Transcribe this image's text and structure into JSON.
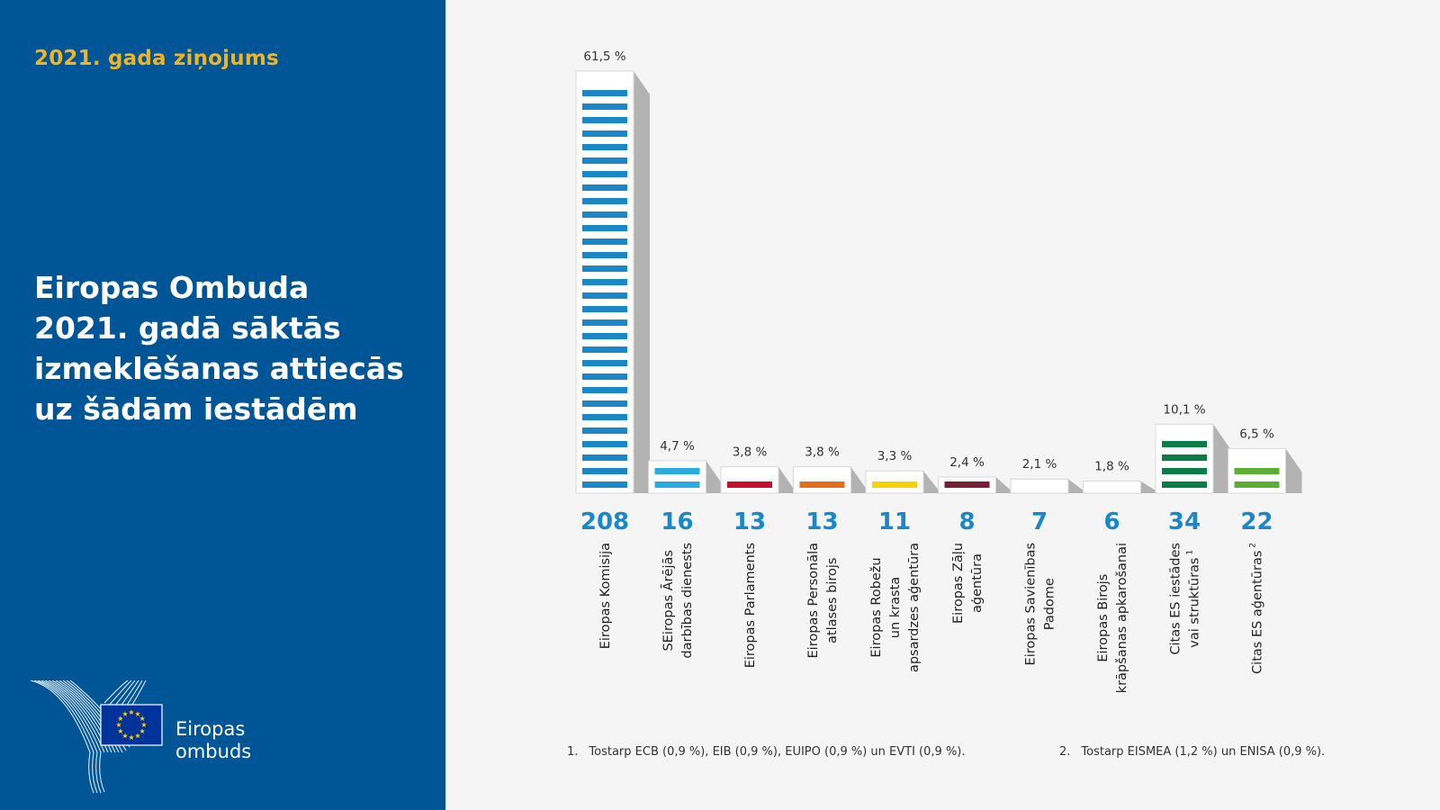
{
  "sidebar": {
    "report_label": "2021. gada ziņojums",
    "title_lines": [
      "Eiropas Ombuda",
      "2021. gadā sāktās",
      "izmeklēšanas attiecās",
      "uz šādām iestādēm"
    ],
    "logo_text": [
      "Eiropas",
      "ombuds"
    ],
    "colors": {
      "background": "#005596",
      "accent": "#f0b323",
      "eu_blue": "#003399",
      "eu_star": "#ffcc00"
    }
  },
  "chart_data": {
    "type": "bar",
    "ylim": [
      0,
      208
    ],
    "categories": [
      {
        "lines": [
          "Eiropas Komisija"
        ],
        "sup": ""
      },
      {
        "lines": [
          "SEiropas Ārējās",
          "darbības dienests"
        ],
        "sup": ""
      },
      {
        "lines": [
          "Eiropas Parlaments"
        ],
        "sup": ""
      },
      {
        "lines": [
          "Eiropas Personāla",
          "atlases birojs"
        ],
        "sup": ""
      },
      {
        "lines": [
          "Eiropas Robežu",
          "un krasta",
          "apsardzes aģentūra"
        ],
        "sup": ""
      },
      {
        "lines": [
          "Eiropas Zāļu",
          "aģentūra"
        ],
        "sup": ""
      },
      {
        "lines": [
          "Eiropas Savienības",
          "Padome"
        ],
        "sup": ""
      },
      {
        "lines": [
          "Eiropas Birojs",
          "krāpšanas apkarošanai"
        ],
        "sup": ""
      },
      {
        "lines": [
          "Citas ES iestādes",
          "vai struktūras"
        ],
        "sup": "1"
      },
      {
        "lines": [
          "Citas ES aģentūras"
        ],
        "sup": "2"
      }
    ],
    "values": [
      208,
      16,
      13,
      13,
      11,
      8,
      7,
      6,
      34,
      22
    ],
    "percent_labels": [
      "61,5 %",
      "4,7 %",
      "3,8 %",
      "3,8 %",
      "3,3 %",
      "2,4 %",
      "2,1 %",
      "1,8 %",
      "10,1 %",
      "6,5 %"
    ],
    "colors": [
      "#1a87c9",
      "#29abe2",
      "#c8102e",
      "#e46f1a",
      "#f5d200",
      "#7a1f35",
      "#e78ab4",
      "#0e5a91",
      "#0a7d46",
      "#5bb033"
    ],
    "count_color": "#1a87c9",
    "footnotes": [
      {
        "num": "1.",
        "text": "Tostarp ECB (0,9 %), EIB (0,9 %), EUIPO (0,9 %) un EVTI (0,9 %)."
      },
      {
        "num": "2.",
        "text": "Tostarp EISMEA (1,2 %) un ENISA (0,9 %)."
      }
    ]
  }
}
